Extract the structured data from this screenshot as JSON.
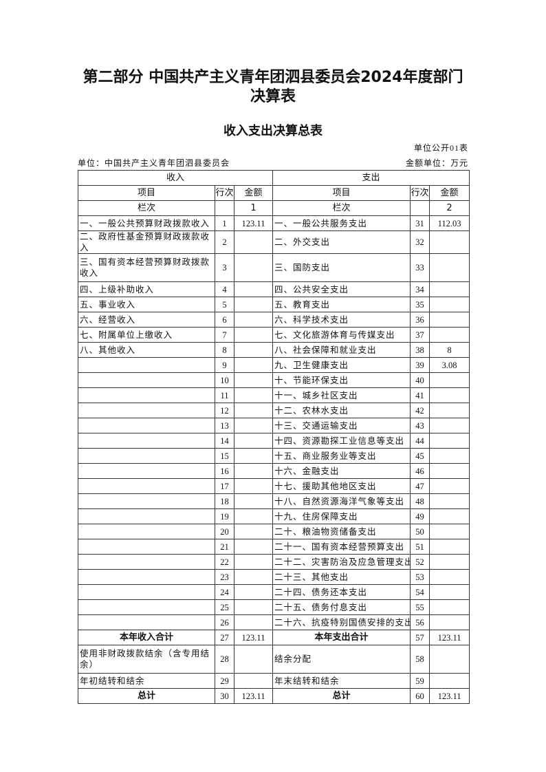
{
  "title_line1": "第二部分  中国共产主义青年团泗县委员会2024年度部门",
  "title_line2": "决算表",
  "subtitle": "收入支出决算总表",
  "form_no": "单位公开01表",
  "unit": "单位：中国共产主义青年团泗县委员会",
  "money_unit": "金额单位：万元",
  "header": {
    "income": "收入",
    "expense": "支出",
    "item": "项目",
    "line": "行次",
    "amount": "金额",
    "lanci": "栏次",
    "col1": "1",
    "col2": "2"
  },
  "rows": [
    {
      "li": "一、一般公共预算财政拨款收入",
      "ln": "1",
      "la": "123.11",
      "ri": "一、一般公共服务支出",
      "rn": "31",
      "ra": "112.03"
    },
    {
      "li": "二、政府性基金预算财政拨款收入",
      "ln": "2",
      "la": "",
      "ri": "二、外交支出",
      "rn": "32",
      "ra": ""
    },
    {
      "li": "三、国有资本经营预算财政拨款收入",
      "ln": "3",
      "la": "",
      "ri": "三、国防支出",
      "rn": "33",
      "ra": "",
      "tall": true
    },
    {
      "li": "四、上级补助收入",
      "ln": "4",
      "la": "",
      "ri": "四、公共安全支出",
      "rn": "34",
      "ra": ""
    },
    {
      "li": "五、事业收入",
      "ln": "5",
      "la": "",
      "ri": "五、教育支出",
      "rn": "35",
      "ra": ""
    },
    {
      "li": "六、经营收入",
      "ln": "6",
      "la": "",
      "ri": "六、科学技术支出",
      "rn": "36",
      "ra": ""
    },
    {
      "li": "七、附属单位上缴收入",
      "ln": "7",
      "la": "",
      "ri": "七、文化旅游体育与传媒支出",
      "rn": "37",
      "ra": ""
    },
    {
      "li": "八、其他收入",
      "ln": "8",
      "la": "",
      "ri": "八、社会保障和就业支出",
      "rn": "38",
      "ra": "8"
    },
    {
      "li": "",
      "ln": "9",
      "la": "",
      "ri": "九、卫生健康支出",
      "rn": "39",
      "ra": "3.08"
    },
    {
      "li": "",
      "ln": "10",
      "la": "",
      "ri": "十、节能环保支出",
      "rn": "40",
      "ra": ""
    },
    {
      "li": "",
      "ln": "11",
      "la": "",
      "ri": "十一、城乡社区支出",
      "rn": "41",
      "ra": ""
    },
    {
      "li": "",
      "ln": "12",
      "la": "",
      "ri": "十二、农林水支出",
      "rn": "42",
      "ra": ""
    },
    {
      "li": "",
      "ln": "13",
      "la": "",
      "ri": "十三、交通运输支出",
      "rn": "43",
      "ra": ""
    },
    {
      "li": "",
      "ln": "14",
      "la": "",
      "ri": "十四、资源勘探工业信息等支出",
      "rn": "44",
      "ra": ""
    },
    {
      "li": "",
      "ln": "15",
      "la": "",
      "ri": "十五、商业服务业等支出",
      "rn": "45",
      "ra": ""
    },
    {
      "li": "",
      "ln": "16",
      "la": "",
      "ri": "十六、金融支出",
      "rn": "46",
      "ra": ""
    },
    {
      "li": "",
      "ln": "17",
      "la": "",
      "ri": "十七、援助其他地区支出",
      "rn": "47",
      "ra": ""
    },
    {
      "li": "",
      "ln": "18",
      "la": "",
      "ri": "十八、自然资源海洋气象等支出",
      "rn": "48",
      "ra": ""
    },
    {
      "li": "",
      "ln": "19",
      "la": "",
      "ri": "十九、住房保障支出",
      "rn": "49",
      "ra": ""
    },
    {
      "li": "",
      "ln": "20",
      "la": "",
      "ri": "二十、粮油物资储备支出",
      "rn": "50",
      "ra": ""
    },
    {
      "li": "",
      "ln": "21",
      "la": "",
      "ri": "二十一、国有资本经营预算支出",
      "rn": "51",
      "ra": ""
    },
    {
      "li": "",
      "ln": "22",
      "la": "",
      "ri": "二十二、灾害防治及应急管理支出",
      "rn": "52",
      "ra": ""
    },
    {
      "li": "",
      "ln": "23",
      "la": "",
      "ri": "二十三、其他支出",
      "rn": "53",
      "ra": ""
    },
    {
      "li": "",
      "ln": "24",
      "la": "",
      "ri": "二十四、债务还本支出",
      "rn": "54",
      "ra": ""
    },
    {
      "li": "",
      "ln": "25",
      "la": "",
      "ri": "二十五、债务付息支出",
      "rn": "55",
      "ra": ""
    },
    {
      "li": "",
      "ln": "26",
      "la": "",
      "ri": "二十六、抗疫特别国债安排的支出",
      "rn": "56",
      "ra": ""
    },
    {
      "li": "本年收入合计",
      "ln": "27",
      "la": "123.11",
      "ri": "本年支出合计",
      "rn": "57",
      "ra": "123.11",
      "bold": true
    },
    {
      "li": "使用非财政拨款结余（含专用结余）",
      "ln": "28",
      "la": "",
      "ri": "结余分配",
      "rn": "58",
      "ra": "",
      "tall": true
    },
    {
      "li": "年初结转和结余",
      "ln": "29",
      "la": "",
      "ri": "年末结转和结余",
      "rn": "59",
      "ra": ""
    },
    {
      "li": "总计",
      "ln": "30",
      "la": "123.11",
      "ri": "总计",
      "rn": "60",
      "ra": "123.11",
      "bold": true
    }
  ]
}
